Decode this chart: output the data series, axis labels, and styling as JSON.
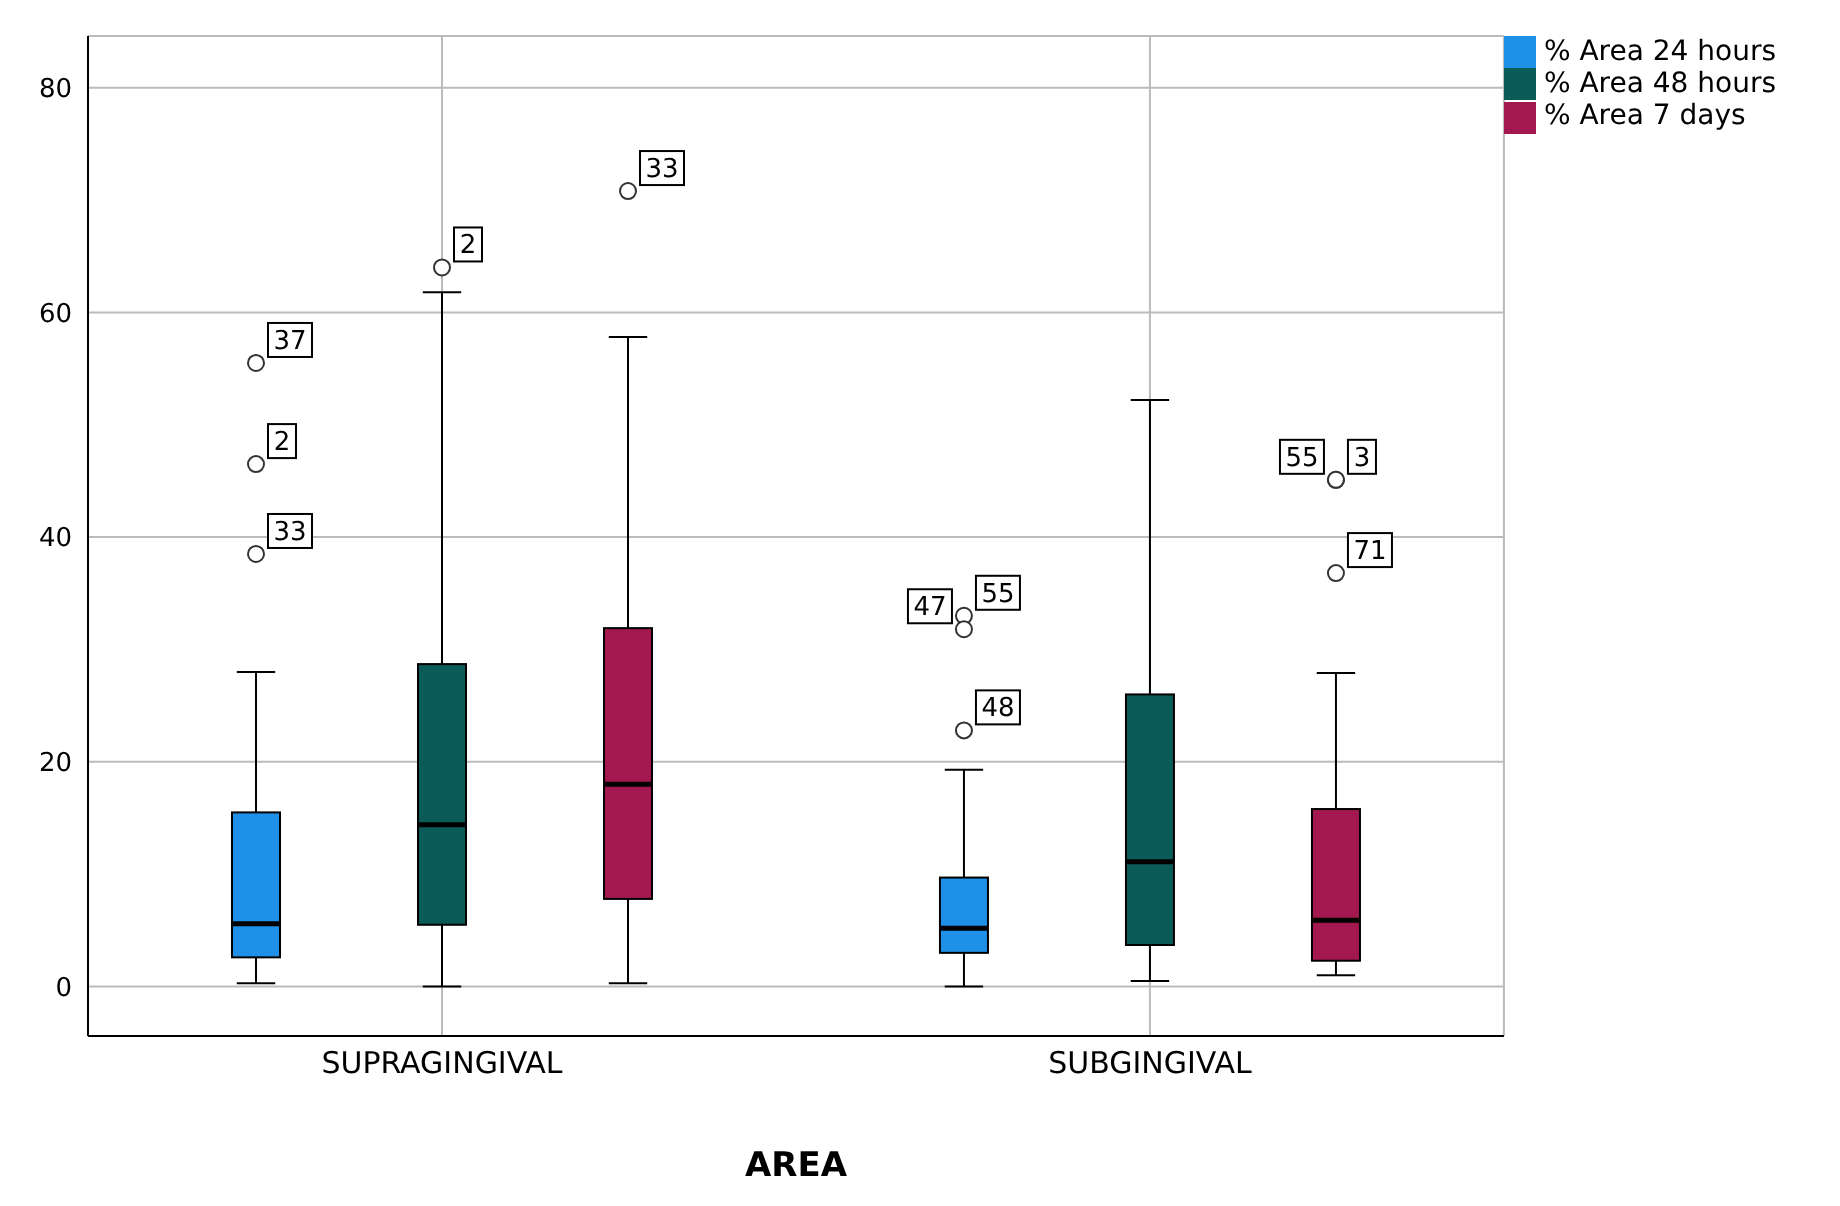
{
  "chart_data": {
    "type": "box",
    "xlabel": "AREA",
    "categories": [
      "SUPRAGINGIVAL",
      "SUBGINGIVAL"
    ],
    "series": [
      {
        "name": "% Area 24 hours",
        "color": "#1e90e8",
        "boxes": [
          {
            "low": 0.3,
            "q1": 2.6,
            "median": 5.6,
            "q3": 15.5,
            "high": 28,
            "outliers": [
              55.5,
              46.5,
              38.5
            ]
          },
          {
            "low": 0,
            "q1": 3,
            "median": 5.2,
            "q3": 9.7,
            "high": 19.3,
            "outliers": [
              33,
              31.8,
              22.8
            ]
          }
        ]
      },
      {
        "name": "% Area 48 hours",
        "color": "#0b5c58",
        "boxes": [
          {
            "low": 0,
            "q1": 5.5,
            "median": 14.4,
            "q3": 28.7,
            "high": 61.8,
            "outliers": [
              64
            ]
          },
          {
            "low": 0.5,
            "q1": 3.7,
            "median": 11.1,
            "q3": 26,
            "high": 52.2
          }
        ]
      },
      {
        "name": "% Area 7 days",
        "color": "#a3194f",
        "boxes": [
          {
            "low": 0.3,
            "q1": 7.8,
            "median": 18,
            "q3": 31.9,
            "high": 57.8,
            "outliers": [
              70.8
            ]
          },
          {
            "low": 1,
            "q1": 2.3,
            "median": 5.9,
            "q3": 15.8,
            "high": 27.9,
            "outliers": [
              45.1,
              45.1,
              36.8
            ]
          }
        ]
      }
    ],
    "ylim": [
      -4.4,
      84.6
    ],
    "yticks": [
      0,
      20,
      40,
      60,
      80
    ],
    "grid": true,
    "legend": "top right",
    "annotations": [
      "37",
      "2",
      "33",
      "2",
      "33",
      "55",
      "47",
      "48",
      "3",
      "55",
      "71"
    ]
  }
}
